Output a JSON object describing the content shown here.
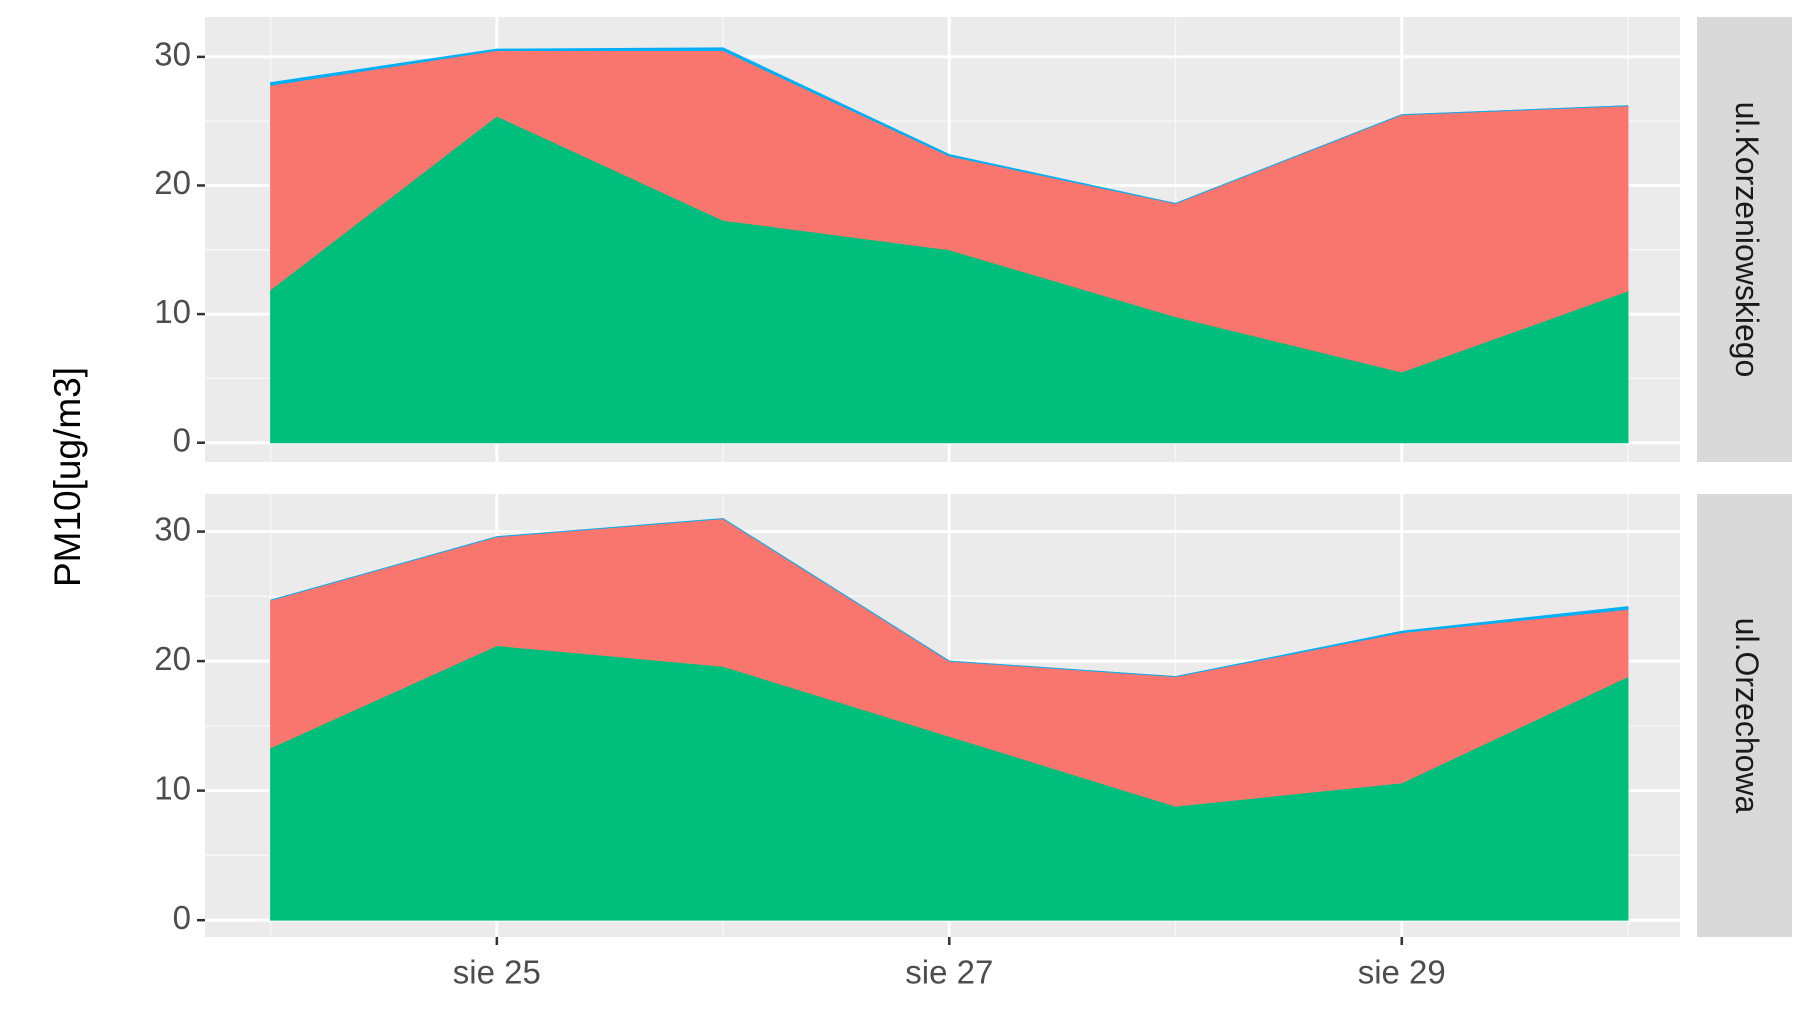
{
  "chart_data": [
    {
      "type": "area",
      "stacked": true,
      "strip": "ul.Korzeniowskiego",
      "ylabel": "PM10[ug/m3]",
      "x": [
        24,
        25,
        26,
        27,
        28,
        29,
        30
      ],
      "xlim": [
        23.71,
        30.23
      ],
      "xticks_minor": [
        24,
        26,
        28,
        30
      ],
      "xticks_major": [
        25,
        27,
        29
      ],
      "series": [
        {
          "color": "#00bf7d",
          "values": [
            11.9,
            25.4,
            17.3,
            15.0,
            9.8,
            5.5,
            11.8
          ]
        },
        {
          "color": "#f8766d",
          "values": [
            15.9,
            5.1,
            13.2,
            7.3,
            8.8,
            20.0,
            14.4
          ]
        },
        {
          "color": "#00b0f6",
          "values": [
            0.2,
            0.1,
            0.2,
            0.1,
            0,
            0,
            0
          ]
        }
      ],
      "ylim": [
        -1.5,
        33.1
      ],
      "yticks": [
        0,
        10,
        20,
        30
      ],
      "yticks_minor": [
        5,
        15,
        25
      ],
      "grid": true
    },
    {
      "type": "area",
      "stacked": true,
      "strip": "ul.Orzechowa",
      "x": [
        24,
        25,
        26,
        27,
        28,
        29,
        30
      ],
      "xlim": [
        23.71,
        30.23
      ],
      "xticks_minor": [
        24,
        26,
        28,
        30
      ],
      "xticks": [
        {
          "value": 25,
          "label": "sie 25"
        },
        {
          "value": 27,
          "label": "sie 27"
        },
        {
          "value": 29,
          "label": "sie 29"
        }
      ],
      "series": [
        {
          "color": "#00bf7d",
          "values": [
            13.3,
            21.2,
            19.6,
            14.2,
            8.8,
            10.6,
            18.8
          ]
        },
        {
          "color": "#f8766d",
          "values": [
            11.4,
            8.4,
            11.4,
            5.8,
            10.0,
            11.6,
            5.2
          ]
        },
        {
          "color": "#00b0f6",
          "values": [
            0,
            0,
            0,
            0,
            0,
            0.1,
            0.2
          ]
        }
      ],
      "ylim": [
        -1.3,
        32.9
      ],
      "yticks": [
        0,
        10,
        20,
        30
      ],
      "yticks_minor": [
        5,
        15,
        25
      ],
      "grid": true
    }
  ]
}
